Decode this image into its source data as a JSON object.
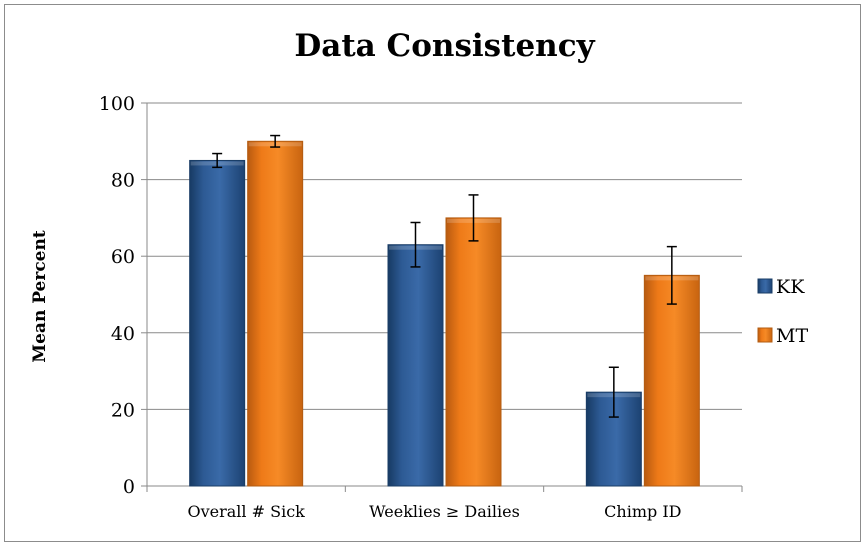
{
  "chart_data": {
    "type": "bar",
    "title": "Data Consistency",
    "xlabel": "",
    "ylabel": "Mean Percent",
    "ylim": [
      0,
      100
    ],
    "yticks": [
      0,
      20,
      40,
      60,
      80,
      100
    ],
    "grid": true,
    "legend_position": "right",
    "error_bars": true,
    "categories": [
      "Overall # Sick",
      "Weeklies ≥ Dailies",
      "Chimp ID"
    ],
    "series": [
      {
        "name": "KK",
        "color": "#2e5b93",
        "values": [
          85,
          63,
          24.5
        ],
        "errors": [
          1.8,
          5.8,
          6.5
        ]
      },
      {
        "name": "MT",
        "color": "#f07d1c",
        "values": [
          90,
          70,
          55
        ],
        "errors": [
          1.5,
          6.0,
          7.5
        ]
      }
    ]
  }
}
